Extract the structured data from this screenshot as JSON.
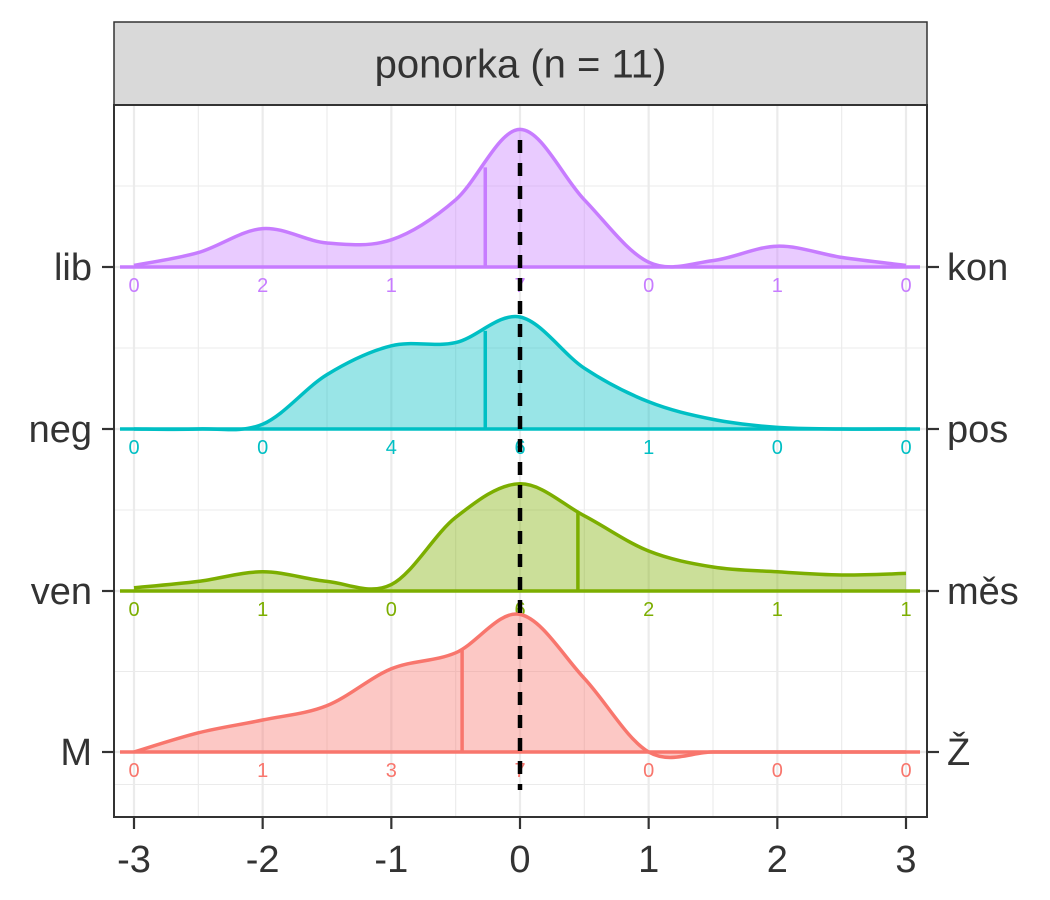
{
  "chart_data": {
    "type": "ridgeline-density",
    "title": "ponorka (n = 11)",
    "xlim": [
      -3,
      3
    ],
    "x_ticks": [
      "-3",
      "-2",
      "-1",
      "0",
      "1",
      "2",
      "3"
    ],
    "reference_line_x": 0,
    "rows": [
      {
        "left_label": "lib",
        "right_label": "kon",
        "color": "#C77CFF",
        "mean": -0.27,
        "counts": [
          "0",
          "2",
          "1",
          "7",
          "0",
          "1",
          "0"
        ],
        "curve": [
          [
            -3,
            0.01
          ],
          [
            -2.5,
            0.09
          ],
          [
            -2,
            0.24
          ],
          [
            -1.5,
            0.15
          ],
          [
            -1,
            0.17
          ],
          [
            -0.5,
            0.42
          ],
          [
            0,
            0.86
          ],
          [
            0.5,
            0.42
          ],
          [
            1,
            0.03
          ],
          [
            1.5,
            0.04
          ],
          [
            2,
            0.13
          ],
          [
            2.5,
            0.06
          ],
          [
            3,
            0.01
          ]
        ]
      },
      {
        "left_label": "neg",
        "right_label": "pos",
        "color": "#00BFC4",
        "mean": -0.27,
        "counts": [
          "0",
          "0",
          "4",
          "6",
          "1",
          "0",
          "0"
        ],
        "curve": [
          [
            -3,
            0
          ],
          [
            -2.5,
            0
          ],
          [
            -2,
            0.03
          ],
          [
            -1.5,
            0.34
          ],
          [
            -1,
            0.52
          ],
          [
            -0.5,
            0.54
          ],
          [
            0,
            0.7
          ],
          [
            0.5,
            0.38
          ],
          [
            1,
            0.17
          ],
          [
            1.5,
            0.06
          ],
          [
            2,
            0.01
          ],
          [
            2.5,
            0
          ],
          [
            3,
            0
          ]
        ]
      },
      {
        "left_label": "ven",
        "right_label": "měs",
        "color": "#7CAE00",
        "mean": 0.45,
        "counts": [
          "0",
          "1",
          "0",
          "6",
          "2",
          "1",
          "1"
        ],
        "curve": [
          [
            -3,
            0.02
          ],
          [
            -2.5,
            0.06
          ],
          [
            -2,
            0.12
          ],
          [
            -1.5,
            0.06
          ],
          [
            -1,
            0.04
          ],
          [
            -0.5,
            0.46
          ],
          [
            0,
            0.67
          ],
          [
            0.5,
            0.47
          ],
          [
            1,
            0.25
          ],
          [
            1.5,
            0.15
          ],
          [
            2,
            0.12
          ],
          [
            2.5,
            0.1
          ],
          [
            3,
            0.11
          ]
        ]
      },
      {
        "left_label": "M",
        "right_label": "Ž",
        "color": "#F8766D",
        "mean": -0.45,
        "counts": [
          "0",
          "1",
          "3",
          "7",
          "0",
          "0",
          "0"
        ],
        "curve": [
          [
            -3,
            0
          ],
          [
            -2.5,
            0.12
          ],
          [
            -2,
            0.2
          ],
          [
            -1.5,
            0.29
          ],
          [
            -1,
            0.52
          ],
          [
            -0.5,
            0.62
          ],
          [
            0,
            0.86
          ],
          [
            0.5,
            0.46
          ],
          [
            1,
            0
          ],
          [
            1.5,
            0
          ],
          [
            2,
            0
          ],
          [
            2.5,
            0
          ],
          [
            3,
            0
          ]
        ]
      }
    ]
  }
}
